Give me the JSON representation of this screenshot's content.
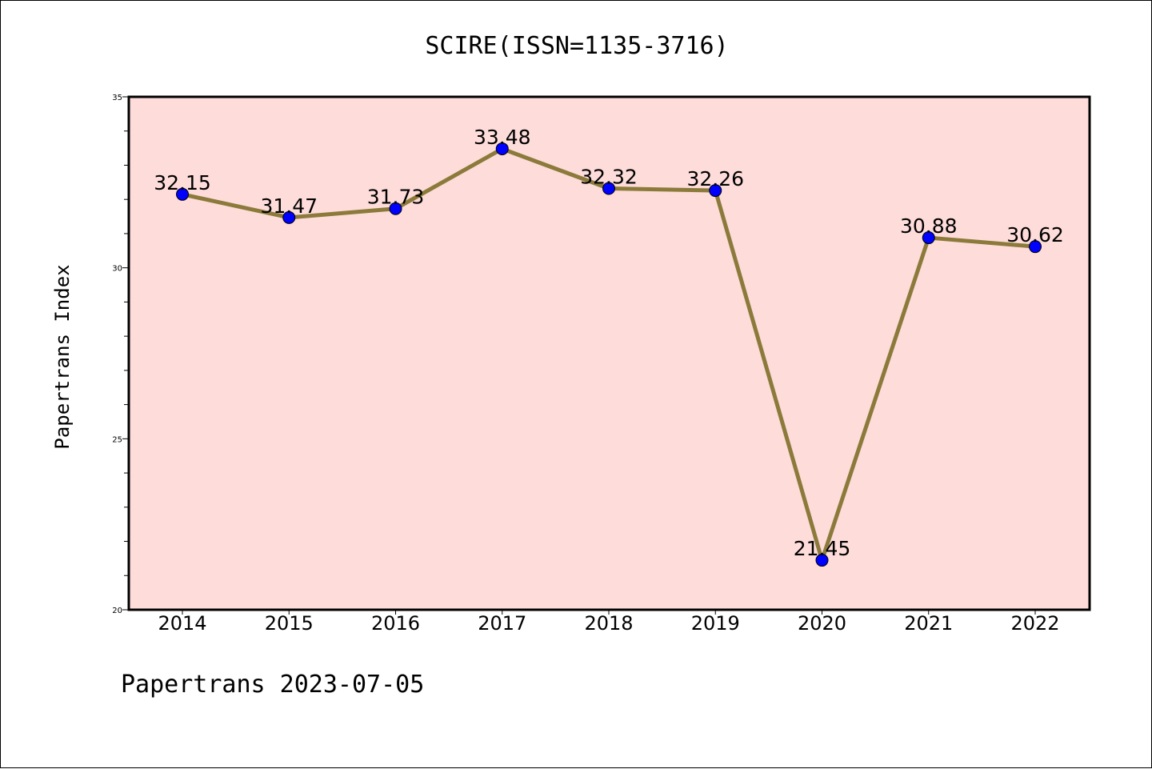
{
  "chart_data": {
    "type": "line",
    "title": "SCIRE(ISSN=1135-3716)",
    "xlabel": "",
    "ylabel": "Papertrans Index",
    "categories": [
      "2014",
      "2015",
      "2016",
      "2017",
      "2018",
      "2019",
      "2020",
      "2021",
      "2022"
    ],
    "series": [
      {
        "values": [
          32.15,
          31.47,
          31.73,
          33.48,
          32.32,
          32.26,
          21.45,
          30.88,
          30.62
        ],
        "labels": [
          "32.15",
          "31.47",
          "31.73",
          "33.48",
          "32.32",
          "32.26",
          "21.45",
          "30.88",
          "30.62"
        ],
        "line_color": "#8B7A3A",
        "marker_color": "#0000FF"
      }
    ],
    "ylim": [
      20,
      35
    ],
    "yticks": [
      "20",
      "25",
      "30",
      "35"
    ],
    "grid": false,
    "legend": "none",
    "plot_background": "#FDDCDA"
  },
  "footer": "Papertrans 2023-07-05"
}
